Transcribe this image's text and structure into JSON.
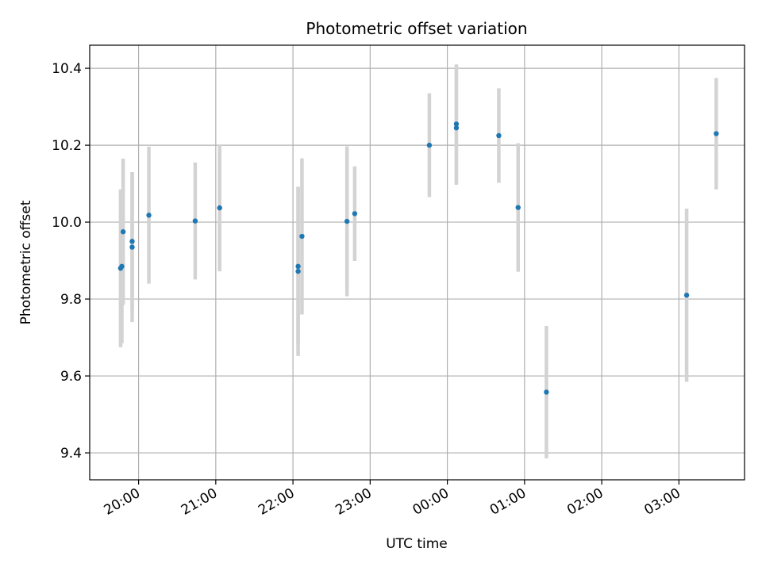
{
  "chart_data": {
    "type": "scatter",
    "title": "Photometric offset variation",
    "xlabel": "UTC time",
    "ylabel": "Photometric offset",
    "xlim": [
      "19:22",
      "03:51"
    ],
    "ylim": [
      9.33,
      10.46
    ],
    "grid": true,
    "x_ticks": [
      "20:00",
      "21:00",
      "22:00",
      "23:00",
      "00:00",
      "01:00",
      "02:00",
      "03:00"
    ],
    "y_ticks": [
      "9.4",
      "9.6",
      "9.8",
      "10.0",
      "10.2",
      "10.4"
    ],
    "colors": {
      "points": "#1f77b4",
      "errorbars": "#d3d3d3",
      "grid": "#b0b0b0"
    },
    "points": [
      {
        "x": "19:46",
        "y": 9.88,
        "err": 0.205
      },
      {
        "x": "19:47",
        "y": 9.885,
        "err": 0.2
      },
      {
        "x": "19:48",
        "y": 9.975,
        "err": 0.19
      },
      {
        "x": "19:55",
        "y": 9.935,
        "err": 0.195
      },
      {
        "x": "19:55",
        "y": 9.95,
        "err": 0.18
      },
      {
        "x": "20:08",
        "y": 10.018,
        "err": 0.178
      },
      {
        "x": "20:44",
        "y": 10.003,
        "err": 0.152
      },
      {
        "x": "21:03",
        "y": 10.037,
        "err": 0.165
      },
      {
        "x": "22:04",
        "y": 9.872,
        "err": 0.22
      },
      {
        "x": "22:04",
        "y": 9.885,
        "err": 0.205
      },
      {
        "x": "22:07",
        "y": 9.963,
        "err": 0.203
      },
      {
        "x": "22:42",
        "y": 10.002,
        "err": 0.195
      },
      {
        "x": "22:48",
        "y": 10.022,
        "err": 0.123
      },
      {
        "x": "23:46",
        "y": 10.2,
        "err": 0.135
      },
      {
        "x": "00:07",
        "y": 10.245,
        "err": 0.148
      },
      {
        "x": "00:07",
        "y": 10.255,
        "err": 0.155
      },
      {
        "x": "00:40",
        "y": 10.225,
        "err": 0.123
      },
      {
        "x": "00:55",
        "y": 10.038,
        "err": 0.167
      },
      {
        "x": "01:17",
        "y": 9.558,
        "err": 0.172
      },
      {
        "x": "03:06",
        "y": 9.81,
        "err": 0.225
      },
      {
        "x": "03:29",
        "y": 10.23,
        "err": 0.145
      }
    ]
  }
}
